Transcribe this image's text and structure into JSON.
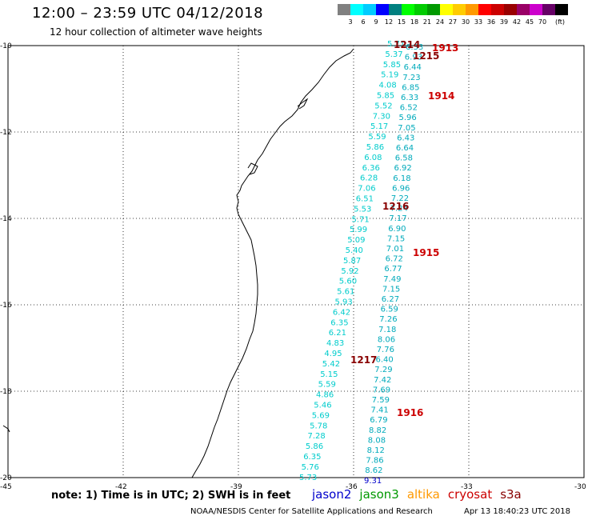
{
  "title": "12:00 – 23:59 UTC 04/12/2018",
  "subtitle": "12 hour collection of altimeter wave heights",
  "colorbar": {
    "unit": "(ft)",
    "colors": [
      "#808080",
      "#00ffff",
      "#00ccff",
      "#0000ff",
      "#008080",
      "#00ff00",
      "#00cc00",
      "#009900",
      "#ffff00",
      "#ffcc00",
      "#ff9900",
      "#ff0000",
      "#cc0000",
      "#990000",
      "#990066",
      "#cc00cc",
      "#660066",
      "#000000"
    ],
    "labels": [
      "3",
      "6",
      "9",
      "12",
      "15",
      "18",
      "21",
      "24",
      "27",
      "30",
      "33",
      "36",
      "39",
      "42",
      "45",
      "70"
    ]
  },
  "axes": {
    "lat_labels": [
      "-10",
      "-12",
      "-14",
      "-16",
      "-18",
      "-20"
    ],
    "lon_labels": [
      "-45",
      "-42",
      "-39",
      "-36",
      "-33",
      "-30"
    ],
    "lat_range": [
      -20,
      -10
    ],
    "lon_range": [
      -45,
      -30
    ]
  },
  "tracks": {
    "cyan": {
      "color": "#00cccc",
      "values": [
        "5.71",
        "5.37",
        "5.85",
        "5.19",
        "4.08",
        "5.85",
        "5.52",
        "7.30",
        "5.17",
        "5.59",
        "5.86",
        "6.08",
        "6.36",
        "6.28",
        "7.06",
        "6.51",
        "5.53",
        "5.71",
        "5.99",
        "5.09",
        "5.40",
        "5.87",
        "5.92",
        "5.60",
        "5.61",
        "5.93",
        "6.42",
        "6.35",
        "6.21",
        "4.83",
        "4.95",
        "5.42",
        "5.15",
        "5.59",
        "4.86",
        "5.46",
        "5.69",
        "5.78",
        "7.28",
        "5.86",
        "6.35",
        "5.76",
        "5.73"
      ]
    },
    "dark": {
      "color": "#00aabb",
      "values": [
        "6.33",
        "6.93",
        "6.44",
        "7.23",
        "6.85",
        "6.33",
        "6.52",
        "5.96",
        "7.05",
        "6.43",
        "6.64",
        "6.58",
        "6.92",
        "6.18",
        "6.96",
        "7.22",
        "7.24",
        "7.17",
        "6.90",
        "7.15",
        "7.01",
        "6.72",
        "6.77",
        "7.49",
        "7.15",
        "6.27",
        "6.59",
        "7.26",
        "7.18",
        "8.06",
        "7.76",
        "6.40",
        "7.29",
        "7.42",
        "7.69",
        "7.59",
        "7.41",
        "6.79",
        "8.82",
        "8.08",
        "8.12",
        "7.86",
        "8.62",
        "9.31"
      ]
    }
  },
  "time_labels": [
    {
      "text": "1214",
      "color": "#880000"
    },
    {
      "text": "1913",
      "color": "#cc0000"
    },
    {
      "text": "1215",
      "color": "#880000"
    },
    {
      "text": "1914",
      "color": "#cc0000"
    },
    {
      "text": "1216",
      "color": "#880000"
    },
    {
      "text": "1915",
      "color": "#cc0000"
    },
    {
      "text": "1217",
      "color": "#880000"
    },
    {
      "text": "1916",
      "color": "#cc0000"
    }
  ],
  "note": "note: 1) Time is in UTC; 2) SWH is in feet",
  "legend": [
    {
      "name": "jason2",
      "color": "#0000cc"
    },
    {
      "name": "jason3",
      "color": "#009900"
    },
    {
      "name": "altika",
      "color": "#ff9900"
    },
    {
      "name": "cryosat",
      "color": "#cc0000"
    },
    {
      "name": "s3a",
      "color": "#880000"
    }
  ],
  "credit": "NOAA/NESDIS Center for Satellite Applications and Research",
  "credit_time": "Apr 13 18:40:23 UTC 2018"
}
